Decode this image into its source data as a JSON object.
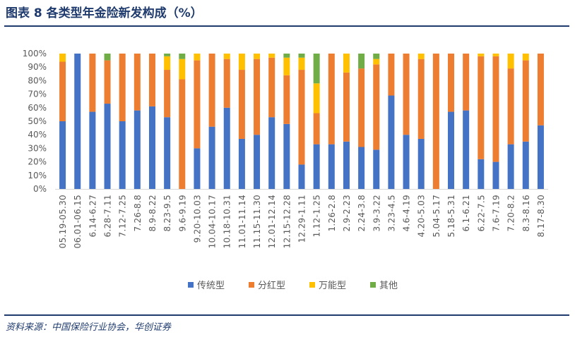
{
  "header": {
    "title": "图表 8  各类型年金险新发构成（%）"
  },
  "footer": {
    "source": "资料来源：中国保险行业协会，华创证券"
  },
  "chart_data": {
    "type": "bar",
    "stacked": true,
    "categories": [
      "05.19-05.30",
      "06.01-06.15",
      "6.14-6.27",
      "6.28-7.11",
      "7.12-7.25",
      "7.26-8.8",
      "8.9-8.22",
      "8.23-9.5",
      "9.6-9.19",
      "9.20-10.03",
      "10.04-10.17",
      "10.18-10.31",
      "11.01-11.14",
      "11.15-11.30",
      "12.01-12.14",
      "12.15-12.28",
      "12.29-1.11",
      "1.12-1.25",
      "1.26-2.8",
      "2.9-2.23",
      "2.24-3.8",
      "3.9-3.22",
      "3.23-4.5",
      "4.6-4.19",
      "4.20-5.03",
      "5.04-5.17",
      "5.18-5.31",
      "6.1-6.21",
      "6.22-7.5",
      "7.6-7.19",
      "7.20-8.2",
      "8.3-8.16",
      "8.17-8.30"
    ],
    "series": [
      {
        "name": "传统型",
        "color": "#4472c4",
        "values": [
          50,
          100,
          57,
          63,
          50,
          58,
          61,
          53,
          0,
          30,
          46,
          60,
          37,
          40,
          53,
          48,
          18,
          33,
          33,
          35,
          31,
          29,
          69,
          40,
          37,
          0,
          57,
          58,
          22,
          20,
          33,
          35,
          47
        ]
      },
      {
        "name": "分红型",
        "color": "#ed7d31",
        "values": [
          44,
          0,
          43,
          32,
          50,
          42,
          39,
          35,
          81,
          65,
          54,
          36,
          51,
          56,
          44,
          36,
          70,
          23,
          67,
          51,
          58,
          63,
          31,
          60,
          59,
          100,
          43,
          42,
          76,
          78,
          56,
          60,
          53
        ]
      },
      {
        "name": "万能型",
        "color": "#ffc000",
        "values": [
          6,
          0,
          0,
          0,
          0,
          0,
          0,
          10,
          15,
          5,
          0,
          4,
          12,
          4,
          3,
          13,
          9,
          22,
          0,
          14,
          0,
          4,
          0,
          0,
          4,
          0,
          0,
          0,
          2,
          2,
          11,
          5,
          0
        ]
      },
      {
        "name": "其他",
        "color": "#70ad47",
        "values": [
          0,
          0,
          0,
          5,
          0,
          0,
          0,
          2,
          4,
          0,
          0,
          0,
          0,
          0,
          0,
          3,
          3,
          22,
          0,
          0,
          11,
          4,
          0,
          0,
          0,
          0,
          0,
          0,
          0,
          0,
          0,
          0,
          0
        ]
      }
    ],
    "ylim": [
      0,
      100
    ],
    "yticks": [
      "0%",
      "10%",
      "20%",
      "30%",
      "40%",
      "50%",
      "60%",
      "70%",
      "80%",
      "90%",
      "100%"
    ],
    "legend_position": "bottom",
    "grid": false
  }
}
